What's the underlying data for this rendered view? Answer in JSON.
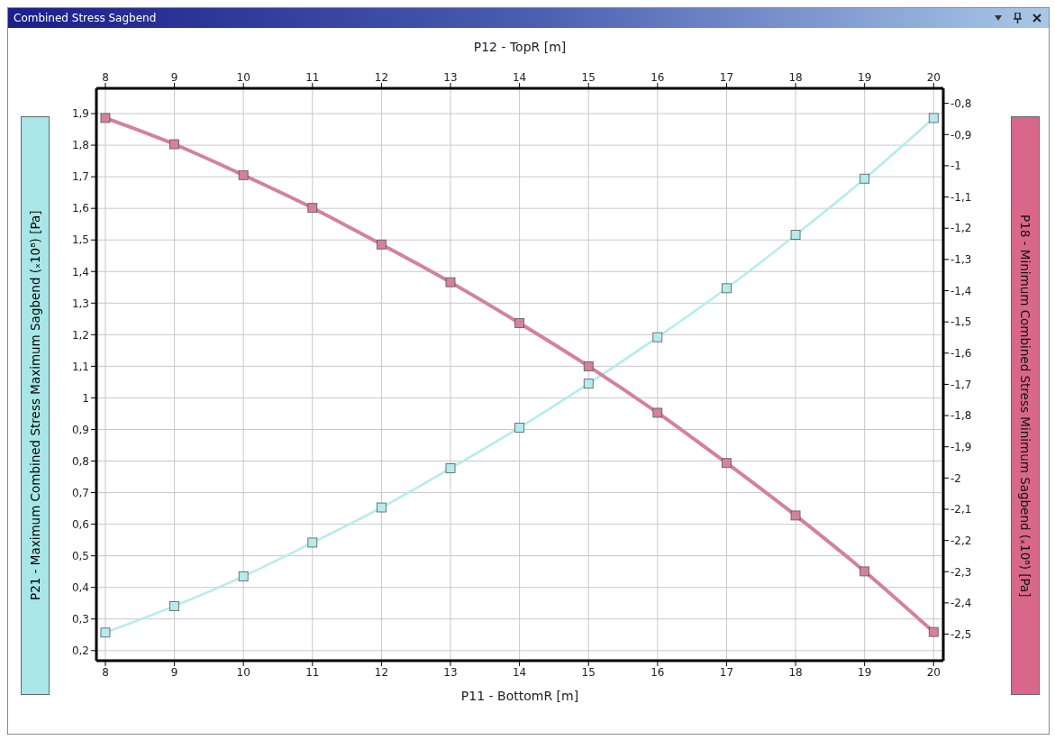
{
  "chart_data": {
    "type": "line",
    "title": "Combined Stress Sagbend",
    "xlabel": "P11 - BottomR  [m]",
    "x2label": "P12 - TopR  [m]",
    "ylabel": "P21 - Maximum Combined Stress Maximum Sagbend  (ₓ10⁸)  [Pa]",
    "y2label": "P18 - Minimum Combined Stress Minimum Sagbend  (ₓ10⁸)  [Pa]",
    "x": [
      8,
      9,
      10,
      11,
      12,
      13,
      14,
      15,
      16,
      17,
      18,
      19,
      20
    ],
    "series": [
      {
        "color": "#b4ecec",
        "values": [
          0.257,
          0.341,
          0.435,
          0.542,
          0.653,
          0.777,
          0.906,
          1.045,
          1.192,
          1.347,
          1.516,
          1.694,
          1.886
        ]
      },
      {
        "color": "#d4819e",
        "axis": "y2",
        "values": [
          -0.847,
          -0.931,
          -1.03,
          -1.135,
          -1.252,
          -1.373,
          -1.504,
          -1.642,
          -1.791,
          -1.952,
          -2.12,
          -2.299,
          -2.493
        ]
      }
    ],
    "xlim": [
      7.87,
      20.14
    ],
    "xticks": [
      8,
      9,
      10,
      11,
      12,
      13,
      14,
      15,
      16,
      17,
      18,
      19,
      20
    ],
    "x2lim": [
      7.87,
      20.14
    ],
    "x2ticks": [
      8,
      9,
      10,
      11,
      12,
      13,
      14,
      15,
      16,
      17,
      18,
      19,
      20
    ],
    "ylim": [
      0.168,
      1.98
    ],
    "yticks": [
      {
        "value": 0.2,
        "label": "0,2"
      },
      {
        "value": 0.3,
        "label": "0,3"
      },
      {
        "value": 0.4,
        "label": "0,4"
      },
      {
        "value": 0.5,
        "label": "0,5"
      },
      {
        "value": 0.6,
        "label": "0,6"
      },
      {
        "value": 0.7,
        "label": "0,7"
      },
      {
        "value": 0.8,
        "label": "0,8"
      },
      {
        "value": 0.9,
        "label": "0,9"
      },
      1,
      {
        "value": 1.1,
        "label": "1,1"
      },
      {
        "value": 1.2,
        "label": "1,2"
      },
      {
        "value": 1.3,
        "label": "1,3"
      },
      {
        "value": 1.4,
        "label": "1,4"
      },
      {
        "value": 1.5,
        "label": "1,5"
      },
      {
        "value": 1.6,
        "label": "1,6"
      },
      {
        "value": 1.7,
        "label": "1,7"
      },
      {
        "value": 1.8,
        "label": "1,8"
      },
      {
        "value": 1.9,
        "label": "1,9"
      }
    ],
    "y2lim": [
      -2.585,
      -0.752
    ],
    "y2ticks": [
      {
        "value": -2.5,
        "label": "-2,5"
      },
      {
        "value": -2.4,
        "label": "-2,4"
      },
      {
        "value": -2.3,
        "label": "-2,3"
      },
      {
        "value": -2.2,
        "label": "-2,2"
      },
      {
        "value": -2.1,
        "label": "-2,1"
      },
      -2,
      {
        "value": -1.9,
        "label": "-1,9"
      },
      {
        "value": -1.8,
        "label": "-1,8"
      },
      {
        "value": -1.7,
        "label": "-1,7"
      },
      {
        "value": -1.6,
        "label": "-1,6"
      },
      {
        "value": -1.5,
        "label": "-1,5"
      },
      {
        "value": -1.4,
        "label": "-1,4"
      },
      {
        "value": -1.3,
        "label": "-1,3"
      },
      {
        "value": -1.2,
        "label": "-1,2"
      },
      {
        "value": -1.1,
        "label": "-1,1"
      },
      -1,
      {
        "value": -0.9,
        "label": "-0,9"
      },
      {
        "value": -0.8,
        "label": "-0,8"
      }
    ],
    "grid": true,
    "marker": "square",
    "line_style": "solid"
  }
}
